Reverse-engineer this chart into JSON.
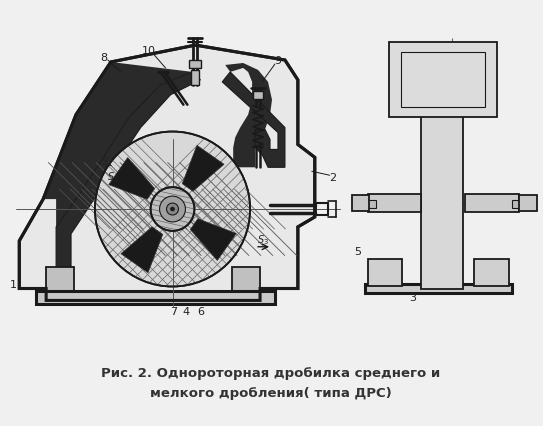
{
  "caption_line1": "Рис. 2. Однороторная дробилка среднего и",
  "caption_line2": "мелкого дробления( типа ДРС)",
  "bg_color": "#f0f0f0",
  "line_color": "#1a1a1a",
  "label_color": "#222222",
  "fig_width": 5.43,
  "fig_height": 4.27,
  "dpi": 100
}
